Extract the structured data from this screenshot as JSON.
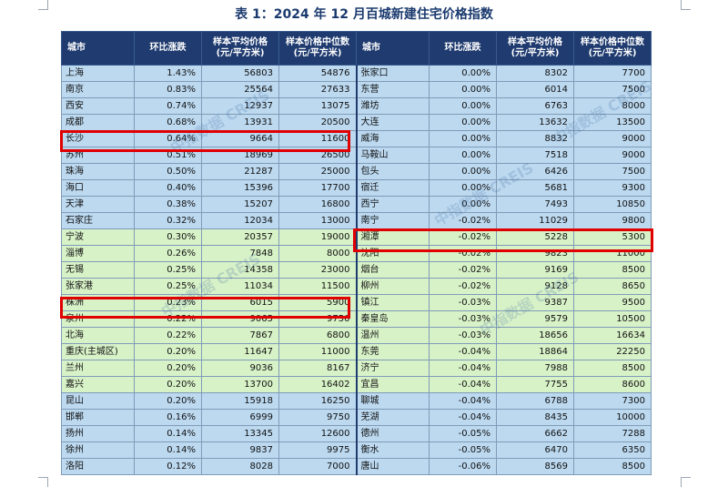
{
  "title": "表 1：2024 年 12 月百城新建住宅价格指数",
  "headers": {
    "city": "城市",
    "change": "环比涨跌",
    "avg_price": "样本平均价格\n(元/平方米)",
    "median_price": "样本价格中位数\n(元/平方米)"
  },
  "watermark": "中指数据 CREIS",
  "rows": [
    {
      "band": "blue",
      "l": {
        "city": "上海",
        "change": "1.43%",
        "avg": "56803",
        "median": "54876"
      },
      "r": {
        "city": "张家口",
        "change": "0.00%",
        "avg": "8302",
        "median": "7700"
      }
    },
    {
      "band": "blue",
      "l": {
        "city": "南京",
        "change": "0.83%",
        "avg": "25564",
        "median": "27633"
      },
      "r": {
        "city": "东营",
        "change": "0.00%",
        "avg": "6014",
        "median": "7500"
      }
    },
    {
      "band": "blue",
      "l": {
        "city": "西安",
        "change": "0.74%",
        "avg": "12937",
        "median": "13075"
      },
      "r": {
        "city": "潍坊",
        "change": "0.00%",
        "avg": "6763",
        "median": "8000"
      }
    },
    {
      "band": "blue",
      "l": {
        "city": "成都",
        "change": "0.68%",
        "avg": "13931",
        "median": "20500"
      },
      "r": {
        "city": "大连",
        "change": "0.00%",
        "avg": "13632",
        "median": "13500"
      }
    },
    {
      "band": "blue",
      "l": {
        "city": "长沙",
        "change": "0.64%",
        "avg": "9664",
        "median": "11600"
      },
      "r": {
        "city": "威海",
        "change": "0.00%",
        "avg": "8832",
        "median": "9000"
      }
    },
    {
      "band": "blue",
      "l": {
        "city": "苏州",
        "change": "0.51%",
        "avg": "18969",
        "median": "26500"
      },
      "r": {
        "city": "马鞍山",
        "change": "0.00%",
        "avg": "7518",
        "median": "9000"
      }
    },
    {
      "band": "blue",
      "l": {
        "city": "珠海",
        "change": "0.50%",
        "avg": "21287",
        "median": "25000"
      },
      "r": {
        "city": "包头",
        "change": "0.00%",
        "avg": "6426",
        "median": "7500"
      }
    },
    {
      "band": "blue",
      "l": {
        "city": "海口",
        "change": "0.40%",
        "avg": "15396",
        "median": "17700"
      },
      "r": {
        "city": "宿迁",
        "change": "0.00%",
        "avg": "5681",
        "median": "9300"
      }
    },
    {
      "band": "blue",
      "l": {
        "city": "天津",
        "change": "0.38%",
        "avg": "15207",
        "median": "16800"
      },
      "r": {
        "city": "西宁",
        "change": "0.00%",
        "avg": "7493",
        "median": "10850"
      }
    },
    {
      "band": "blue",
      "l": {
        "city": "石家庄",
        "change": "0.32%",
        "avg": "12034",
        "median": "13000"
      },
      "r": {
        "city": "南宁",
        "change": "-0.02%",
        "avg": "11029",
        "median": "9800"
      }
    },
    {
      "band": "green",
      "l": {
        "city": "宁波",
        "change": "0.30%",
        "avg": "20357",
        "median": "19000"
      },
      "r": {
        "city": "湘潭",
        "change": "-0.02%",
        "avg": "5228",
        "median": "5300"
      }
    },
    {
      "band": "green",
      "l": {
        "city": "淄博",
        "change": "0.26%",
        "avg": "7848",
        "median": "8000"
      },
      "r": {
        "city": "沈阳",
        "change": "-0.02%",
        "avg": "9823",
        "median": "11000"
      }
    },
    {
      "band": "green",
      "l": {
        "city": "无锡",
        "change": "0.25%",
        "avg": "14358",
        "median": "23000"
      },
      "r": {
        "city": "烟台",
        "change": "-0.02%",
        "avg": "9169",
        "median": "8500"
      }
    },
    {
      "band": "green",
      "l": {
        "city": "张家港",
        "change": "0.25%",
        "avg": "11034",
        "median": "11500"
      },
      "r": {
        "city": "柳州",
        "change": "-0.02%",
        "avg": "9128",
        "median": "8650"
      }
    },
    {
      "band": "green",
      "l": {
        "city": "株洲",
        "change": "0.23%",
        "avg": "6015",
        "median": "5900"
      },
      "r": {
        "city": "镇江",
        "change": "-0.03%",
        "avg": "9387",
        "median": "9500"
      }
    },
    {
      "band": "green",
      "l": {
        "city": "泉州",
        "change": "0.22%",
        "avg": "9065",
        "median": "9750"
      },
      "r": {
        "city": "秦皇岛",
        "change": "-0.03%",
        "avg": "9579",
        "median": "10500"
      }
    },
    {
      "band": "green",
      "l": {
        "city": "北海",
        "change": "0.22%",
        "avg": "7867",
        "median": "6800"
      },
      "r": {
        "city": "温州",
        "change": "-0.03%",
        "avg": "18656",
        "median": "16634"
      }
    },
    {
      "band": "green",
      "l": {
        "city": "重庆(主城区)",
        "change": "0.20%",
        "avg": "11647",
        "median": "11000"
      },
      "r": {
        "city": "东莞",
        "change": "-0.04%",
        "avg": "18864",
        "median": "22250"
      }
    },
    {
      "band": "green",
      "l": {
        "city": "兰州",
        "change": "0.20%",
        "avg": "9036",
        "median": "8167"
      },
      "r": {
        "city": "济宁",
        "change": "-0.04%",
        "avg": "7988",
        "median": "8500"
      }
    },
    {
      "band": "green",
      "l": {
        "city": "嘉兴",
        "change": "0.20%",
        "avg": "13700",
        "median": "16402"
      },
      "r": {
        "city": "宜昌",
        "change": "-0.04%",
        "avg": "7755",
        "median": "8600"
      }
    },
    {
      "band": "blue",
      "l": {
        "city": "昆山",
        "change": "0.20%",
        "avg": "15918",
        "median": "16250"
      },
      "r": {
        "city": "聊城",
        "change": "-0.04%",
        "avg": "6788",
        "median": "7300"
      }
    },
    {
      "band": "blue",
      "l": {
        "city": "邯郸",
        "change": "0.16%",
        "avg": "6999",
        "median": "9750"
      },
      "r": {
        "city": "芜湖",
        "change": "-0.04%",
        "avg": "8435",
        "median": "10000"
      }
    },
    {
      "band": "blue",
      "l": {
        "city": "扬州",
        "change": "0.14%",
        "avg": "13345",
        "median": "12600"
      },
      "r": {
        "city": "德州",
        "change": "-0.05%",
        "avg": "6662",
        "median": "7288"
      }
    },
    {
      "band": "blue",
      "l": {
        "city": "徐州",
        "change": "0.14%",
        "avg": "9837",
        "median": "9975"
      },
      "r": {
        "city": "衡水",
        "change": "-0.05%",
        "avg": "6470",
        "median": "6350"
      }
    },
    {
      "band": "blue",
      "l": {
        "city": "洛阳",
        "change": "0.12%",
        "avg": "8028",
        "median": "7000"
      },
      "r": {
        "city": "唐山",
        "change": "-0.06%",
        "avg": "8569",
        "median": "8500"
      }
    }
  ]
}
